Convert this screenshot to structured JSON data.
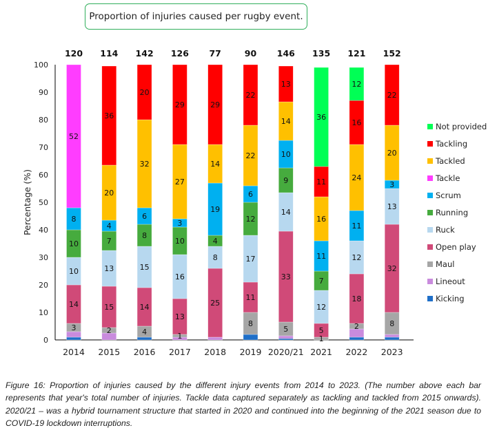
{
  "chart_data": {
    "type": "bar",
    "stacked": true,
    "title": "Proportion of injuries caused per rugby event.",
    "xlabel": "",
    "ylabel": "Percentage (%)",
    "ylim": [
      0,
      100
    ],
    "yticks": [
      0,
      10,
      20,
      30,
      40,
      50,
      60,
      70,
      80,
      90,
      100
    ],
    "grid": false,
    "legend_position": "right",
    "categories": [
      "2014",
      "2015",
      "2016",
      "2017",
      "2018",
      "2019",
      "2020/21",
      "2021",
      "2022",
      "2023"
    ],
    "totals": [
      120,
      114,
      142,
      126,
      77,
      90,
      146,
      135,
      121,
      152
    ],
    "series": [
      {
        "name": "Kicking",
        "color": "#1f6fc8",
        "values": [
          1,
          0,
          1,
          0,
          0,
          2,
          0.5,
          0,
          1,
          1
        ],
        "labels": [
          null,
          null,
          null,
          null,
          null,
          null,
          null,
          null,
          null,
          null
        ]
      },
      {
        "name": "Lineout",
        "color": "#c98bdd",
        "values": [
          2,
          2.5,
          0,
          1,
          1,
          0,
          1,
          0,
          3,
          1
        ],
        "labels": [
          null,
          null,
          null,
          null,
          null,
          null,
          null,
          null,
          null,
          null
        ]
      },
      {
        "name": "Maul",
        "color": "#a6a6a6",
        "values": [
          3,
          2,
          4,
          1,
          0,
          8,
          5,
          1,
          2,
          8
        ],
        "labels": [
          "3",
          "2",
          "4",
          "1",
          null,
          "8",
          "5",
          "1",
          "2",
          "8"
        ]
      },
      {
        "name": "Open play",
        "color": "#d04a78",
        "values": [
          14,
          15,
          14,
          13,
          25,
          11,
          33,
          5,
          18,
          32
        ],
        "labels": [
          "14",
          "15",
          "14",
          "13",
          "25",
          "11",
          "33",
          "5",
          "18",
          "32"
        ]
      },
      {
        "name": "Ruck",
        "color": "#b7d8ef",
        "values": [
          10,
          13,
          15,
          16,
          8,
          17,
          14,
          12,
          12,
          13
        ],
        "labels": [
          "10",
          "13",
          "15",
          "16",
          "8",
          "17",
          "14",
          "12",
          "12",
          "13"
        ]
      },
      {
        "name": "Running",
        "color": "#46ab3e",
        "values": [
          10,
          7,
          8,
          10,
          4,
          12,
          9,
          7,
          0,
          0
        ],
        "labels": [
          "10",
          "7",
          "8",
          "10",
          "4",
          "12",
          "9",
          "7",
          null,
          null
        ]
      },
      {
        "name": "Scrum",
        "color": "#00b0f0",
        "values": [
          8,
          4,
          6,
          3,
          19,
          6,
          10,
          11,
          11,
          3
        ],
        "labels": [
          "8",
          "4",
          "6",
          "3",
          "19",
          "6",
          "10",
          "11",
          "11",
          "3"
        ]
      },
      {
        "name": "Tackle",
        "color": "#ff3dff",
        "values": [
          52,
          0,
          0,
          0,
          0,
          0,
          0,
          0,
          0,
          0
        ],
        "labels": [
          "52",
          null,
          null,
          null,
          null,
          null,
          null,
          null,
          null,
          null
        ]
      },
      {
        "name": "Tackled",
        "color": "#ffc000",
        "values": [
          0,
          20,
          32,
          27,
          14,
          22,
          14,
          16,
          24,
          20
        ],
        "labels": [
          null,
          "20",
          "32",
          "27",
          "14",
          "22",
          "14",
          "16",
          "24",
          "20"
        ]
      },
      {
        "name": "Tackling",
        "color": "#ff0000",
        "values": [
          0,
          36,
          20,
          29,
          29,
          22,
          13,
          11,
          16,
          22
        ],
        "labels": [
          null,
          "36",
          "20",
          "29",
          "29",
          "22",
          "13",
          "11",
          "16",
          "22"
        ]
      },
      {
        "name": "Not provided",
        "color": "#00ff55",
        "values": [
          0,
          0,
          0,
          0,
          0,
          0,
          0,
          36,
          12,
          0
        ],
        "labels": [
          null,
          null,
          null,
          null,
          null,
          null,
          null,
          "36",
          "12",
          null
        ]
      }
    ],
    "legend_order": [
      "Not provided",
      "Tackling",
      "Tackled",
      "Tackle",
      "Scrum",
      "Running",
      "Ruck",
      "Open play",
      "Maul",
      "Lineout",
      "Kicking"
    ]
  },
  "caption": "Figure 16: Proportion of injuries caused by the different injury events from 2014 to 2023. (The number above each bar represents that year's total number of injuries. Tackle data captured separately as tackling and tackled from 2015 onwards). 2020/21 – was a hybrid tournament structure that started in 2020 and continued into the beginning of the 2021 season due to COVID-19 lockdown interruptions."
}
